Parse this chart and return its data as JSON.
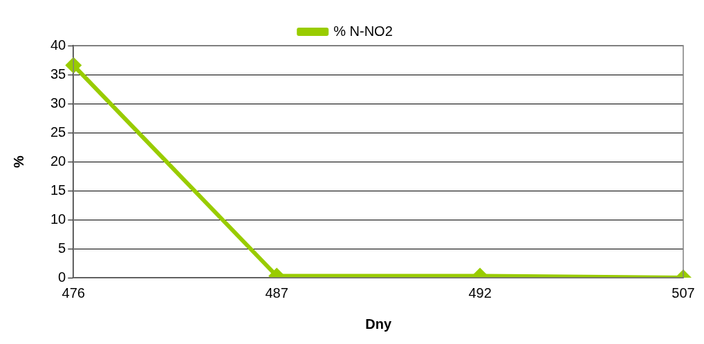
{
  "chart_data": {
    "type": "line",
    "xlabel": "Dny",
    "ylabel": "%",
    "categories": [
      "476",
      "487",
      "492",
      "507"
    ],
    "series": [
      {
        "name": "% N-NO2",
        "color": "#99cc00",
        "values": [
          36.6,
          0.3,
          0.3,
          0.0
        ]
      }
    ],
    "ylim": [
      0,
      40
    ],
    "yticks": [
      0,
      5,
      10,
      15,
      20,
      25,
      30,
      35,
      40
    ],
    "grid": "y",
    "legend": "top",
    "marker": "diamond",
    "line_style": "solid"
  }
}
